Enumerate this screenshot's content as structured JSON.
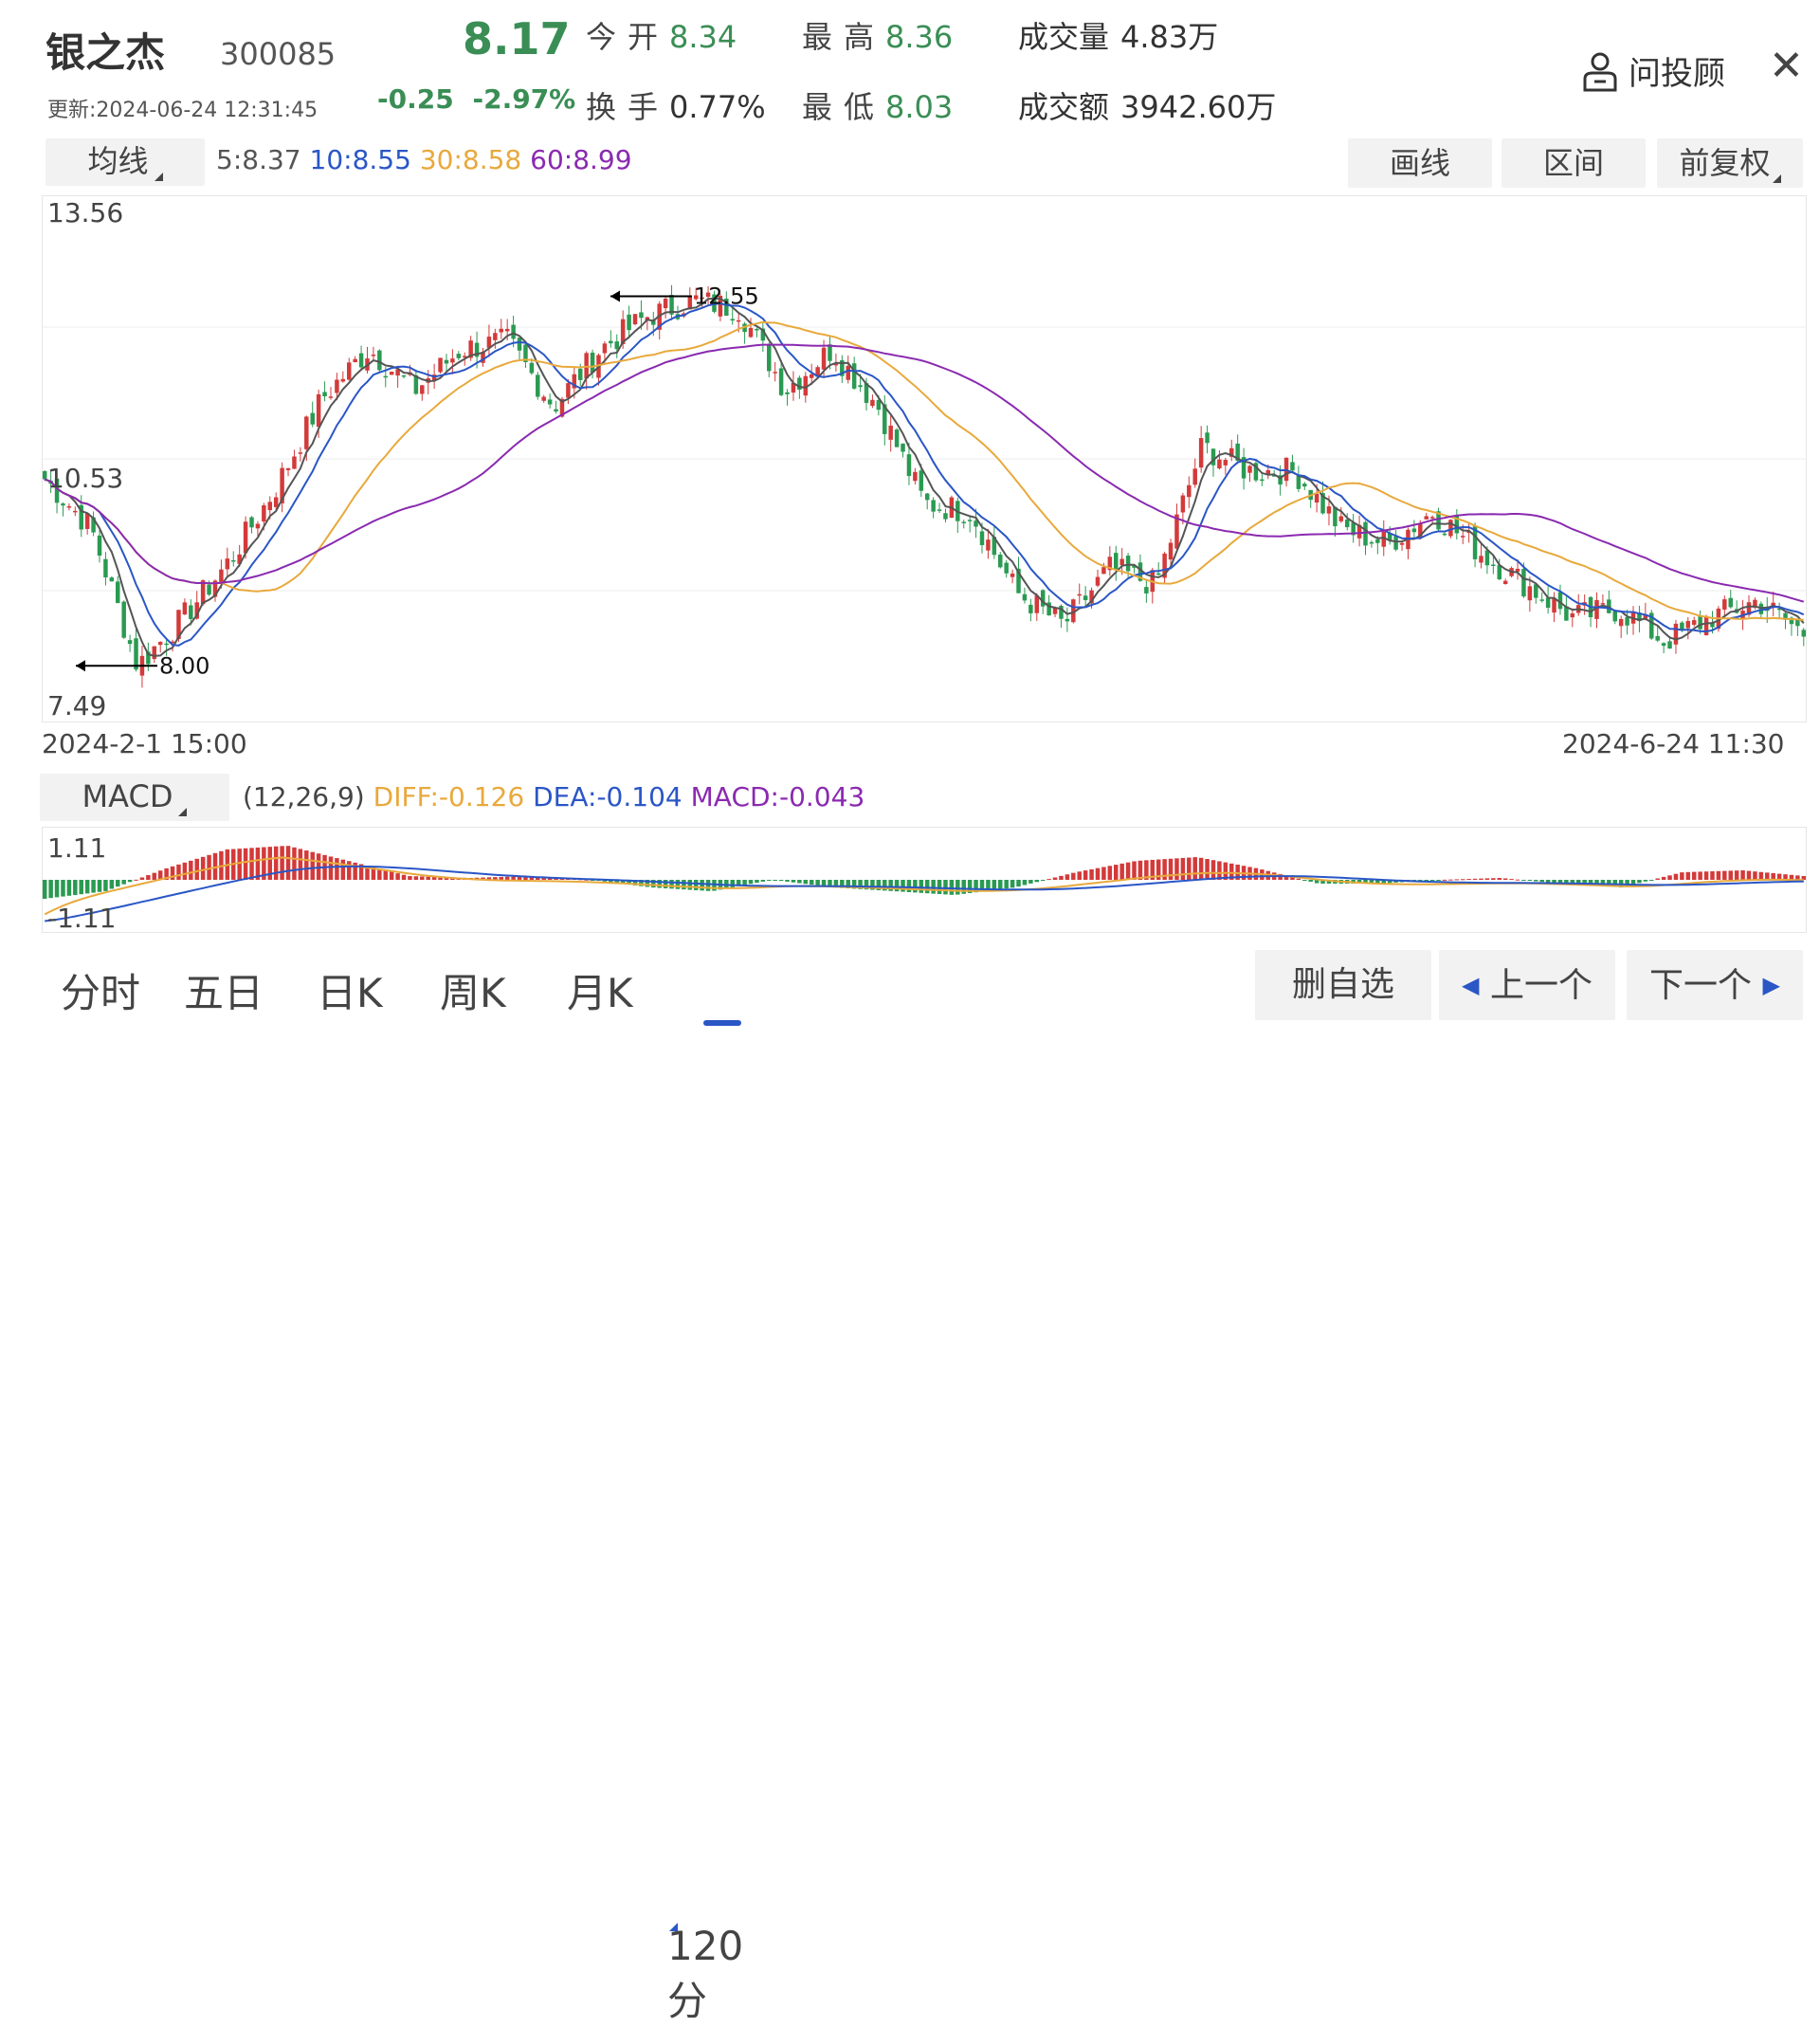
{
  "header": {
    "name": "银之杰",
    "code": "300085",
    "update": "更新:2024-06-24 12:31:45",
    "price": "8.17",
    "change": "-0.25",
    "change_pct": "-2.97%",
    "open_label": "今开",
    "open": "8.34",
    "high_label": "最高",
    "high": "8.36",
    "volume_label": "成交量",
    "volume": "4.83万",
    "turnover_label": "换手",
    "turnover": "0.77%",
    "low_label": "最低",
    "low": "8.03",
    "amount_label": "成交额",
    "amount": "3942.60万",
    "advisor": "问投顾"
  },
  "ma_bar": {
    "selector": "均线",
    "ma5": "5:8.37",
    "ma10": "10:8.55",
    "ma30": "30:8.58",
    "ma60": "60:8.99",
    "draw_btn": "画线",
    "range_btn": "区间",
    "adjust_btn": "前复权"
  },
  "colors": {
    "up": "#d33a3a",
    "down": "#2a9a52",
    "ma5": "#555555",
    "ma10": "#2a56c6",
    "ma30": "#e8a93c",
    "ma60": "#8a2ab0"
  },
  "chart_data": {
    "type": "candlestick",
    "y_max_label": "13.56",
    "y_mid_label": "10.53",
    "y_min_label": "7.49",
    "ylim": [
      7.49,
      13.56
    ],
    "high_marker": "12.55",
    "low_marker": "8.00",
    "x_start": "2024-2-1 15:00",
    "x_end": "2024-6-24 11:30",
    "close_anchors": [
      10.3,
      9.7,
      8.0,
      8.6,
      9.3,
      10.2,
      11.3,
      11.9,
      11.4,
      11.9,
      12.0,
      11.2,
      11.9,
      12.3,
      12.5,
      12.4,
      11.4,
      11.9,
      11.2,
      10.0,
      9.9,
      8.9,
      8.5,
      9.2,
      9.0,
      10.7,
      10.4,
      10.4,
      9.7,
      9.5,
      9.9,
      9.4,
      9.0,
      8.6,
      8.7,
      8.3,
      8.6,
      8.8,
      8.4
    ]
  },
  "macd": {
    "selector": "MACD",
    "params": "(12,26,9)",
    "diff": "DIFF:-0.126",
    "dea": "DEA:-0.104",
    "macd": "MACD:-0.043",
    "y_max": "1.11",
    "y_min": "-1.11",
    "histogram_anchors": [
      -0.5,
      -0.3,
      0.3,
      0.8,
      0.9,
      0.5,
      0.1,
      0.05,
      0.1,
      0.0,
      -0.2,
      -0.3,
      0.0,
      -0.2,
      -0.3,
      -0.4,
      -0.2,
      0.2,
      0.5,
      0.6,
      0.3,
      -0.1,
      -0.1,
      0.0,
      0.05,
      -0.1,
      -0.2,
      0.2,
      0.25,
      0.1
    ]
  },
  "tabs": {
    "t1": "分时",
    "t2": "五日",
    "t3": "日K",
    "t4": "周K",
    "t5": "月K",
    "t6": "120分",
    "remove": "删自选",
    "prev": "上一个",
    "next": "下一个"
  }
}
